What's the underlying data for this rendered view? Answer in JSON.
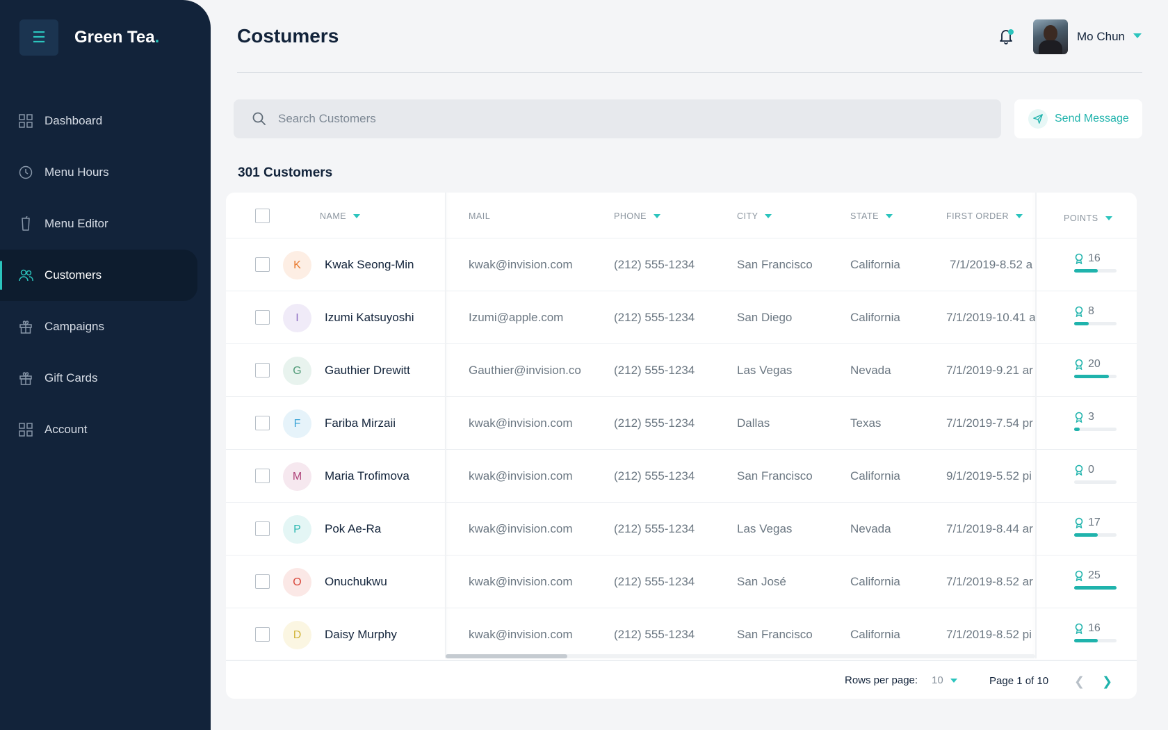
{
  "brand": {
    "name": "Green Tea",
    "dot": "."
  },
  "nav": [
    {
      "label": "Dashboard",
      "icon": "grid-icon",
      "active": false
    },
    {
      "label": "Menu Hours",
      "icon": "clock-icon",
      "active": false
    },
    {
      "label": "Menu Editor",
      "icon": "glass-icon",
      "active": false
    },
    {
      "label": "Customers",
      "icon": "users-icon",
      "active": true
    },
    {
      "label": "Campaigns",
      "icon": "gift-icon",
      "active": false
    },
    {
      "label": "Gift Cards",
      "icon": "gift-icon",
      "active": false
    },
    {
      "label": "Account",
      "icon": "grid-icon",
      "active": false
    }
  ],
  "header": {
    "title": "Costumers",
    "user_name": "Mo Chun"
  },
  "search": {
    "placeholder": "Search Customers",
    "value": ""
  },
  "send_message": "Send Message",
  "count_label": "301 Customers",
  "columns": {
    "name": "NAME",
    "mail": "MAIL",
    "phone": "PHONE",
    "city": "CITY",
    "state": "STATE",
    "first_order": "FIRST ORDER",
    "points": "POINTS"
  },
  "rows": [
    {
      "initial": "K",
      "name": "Kwak Seong-Min",
      "mail": "kwak@invision.com",
      "phone": "(212) 555-1234",
      "city": "San Francisco",
      "state": "California",
      "first_order": "7/1/2019-8.52 a",
      "points": "16",
      "points_fraction": 0.55,
      "color": "#e8782c",
      "bg": "#fdeee4"
    },
    {
      "initial": "I",
      "name": "Izumi Katsuyoshi",
      "mail": "Izumi@apple.com",
      "phone": "(212) 555-1234",
      "city": "San Diego",
      "state": "California",
      "first_order": "7/1/2019-10.41 a",
      "points": "8",
      "points_fraction": 0.35,
      "color": "#8b6cc2",
      "bg": "#f0ebf8"
    },
    {
      "initial": "G",
      "name": "Gauthier Drewitt",
      "mail": "Gauthier@invision.co",
      "phone": "(212) 555-1234",
      "city": "Las Vegas",
      "state": "Nevada",
      "first_order": "7/1/2019-9.21 ar",
      "points": "20",
      "points_fraction": 0.82,
      "color": "#4f9a77",
      "bg": "#e8f3ee"
    },
    {
      "initial": "F",
      "name": "Fariba Mirzaii",
      "mail": "kwak@invision.com",
      "phone": "(212) 555-1234",
      "city": "Dallas",
      "state": "Texas",
      "first_order": "7/1/2019-7.54 pr",
      "points": "3",
      "points_fraction": 0.13,
      "color": "#3aa3d6",
      "bg": "#e6f3fa"
    },
    {
      "initial": "M",
      "name": "Maria Trofimova",
      "mail": "kwak@invision.com",
      "phone": "(212) 555-1234",
      "city": "San Francisco",
      "state": "California",
      "first_order": "9/1/2019-5.52 pi",
      "points": "0",
      "points_fraction": 0.0,
      "color": "#b0437a",
      "bg": "#f6e8ef"
    },
    {
      "initial": "P",
      "name": "Pok Ae-Ra",
      "mail": "kwak@invision.com",
      "phone": "(212) 555-1234",
      "city": "Las Vegas",
      "state": "Nevada",
      "first_order": "7/1/2019-8.44 ar",
      "points": "17",
      "points_fraction": 0.55,
      "color": "#2bb8b0",
      "bg": "#e4f6f5"
    },
    {
      "initial": "O",
      "name": "Onuchukwu",
      "mail": "kwak@invision.com",
      "phone": "(212) 555-1234",
      "city": "San José",
      "state": "California",
      "first_order": "7/1/2019-8.52 ar",
      "points": "25",
      "points_fraction": 1.0,
      "color": "#d9483b",
      "bg": "#fbe8e6"
    },
    {
      "initial": "D",
      "name": "Daisy Murphy",
      "mail": "kwak@invision.com",
      "phone": "(212) 555-1234",
      "city": "San Francisco",
      "state": "California",
      "first_order": "7/1/2019-8.52 pi",
      "points": "16",
      "points_fraction": 0.55,
      "color": "#d1b43a",
      "bg": "#fbf6e2"
    }
  ],
  "footer": {
    "rows_per_page_label": "Rows per page:",
    "rows_per_page": "10",
    "page_info": "Page 1 of 10"
  },
  "colors": {
    "accent": "#2bc4bd",
    "sidebar": "#12233a"
  }
}
